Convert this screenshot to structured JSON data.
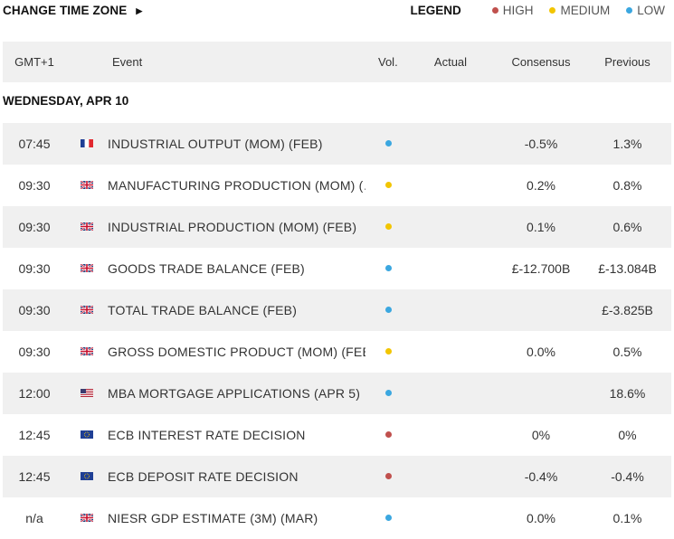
{
  "header": {
    "change_tz_label": "CHANGE TIME ZONE",
    "change_tz_arrow": "▶",
    "legend_title": "LEGEND",
    "legend": [
      {
        "label": "HIGH",
        "color": "#c0504d"
      },
      {
        "label": "MEDIUM",
        "color": "#f2c500"
      },
      {
        "label": "LOW",
        "color": "#3ba7e0"
      }
    ]
  },
  "columns": {
    "time": "GMT+1",
    "event": "Event",
    "vol": "Vol.",
    "actual": "Actual",
    "consensus": "Consensus",
    "previous": "Previous"
  },
  "day_label": "WEDNESDAY, APR 10",
  "colors": {
    "high": "#c0504d",
    "medium": "#f2c500",
    "low": "#3ba7e0"
  },
  "rows": [
    {
      "time": "07:45",
      "flag": "fr",
      "event": "INDUSTRIAL OUTPUT (MOM) (FEB)",
      "vol": "low",
      "actual": "",
      "consensus": "-0.5%",
      "previous": "1.3%"
    },
    {
      "time": "09:30",
      "flag": "uk",
      "event": "MANUFACTURING PRODUCTION (MOM) (…",
      "vol": "medium",
      "actual": "",
      "consensus": "0.2%",
      "previous": "0.8%"
    },
    {
      "time": "09:30",
      "flag": "uk",
      "event": "INDUSTRIAL PRODUCTION (MOM) (FEB)",
      "vol": "medium",
      "actual": "",
      "consensus": "0.1%",
      "previous": "0.6%"
    },
    {
      "time": "09:30",
      "flag": "uk",
      "event": "GOODS TRADE BALANCE (FEB)",
      "vol": "low",
      "actual": "",
      "consensus": "£-12.700B",
      "previous": "£-13.084B"
    },
    {
      "time": "09:30",
      "flag": "uk",
      "event": "TOTAL TRADE BALANCE (FEB)",
      "vol": "low",
      "actual": "",
      "consensus": "",
      "previous": "£-3.825B"
    },
    {
      "time": "09:30",
      "flag": "uk",
      "event": "GROSS DOMESTIC PRODUCT (MOM) (FEB)",
      "vol": "medium",
      "actual": "",
      "consensus": "0.0%",
      "previous": "0.5%"
    },
    {
      "time": "12:00",
      "flag": "us",
      "event": "MBA MORTGAGE APPLICATIONS (APR 5)",
      "vol": "low",
      "actual": "",
      "consensus": "",
      "previous": "18.6%"
    },
    {
      "time": "12:45",
      "flag": "eu",
      "event": "ECB INTEREST RATE DECISION",
      "vol": "high",
      "actual": "",
      "consensus": "0%",
      "previous": "0%"
    },
    {
      "time": "12:45",
      "flag": "eu",
      "event": "ECB DEPOSIT RATE DECISION",
      "vol": "high",
      "actual": "",
      "consensus": "-0.4%",
      "previous": "-0.4%"
    },
    {
      "time": "n/a",
      "flag": "uk",
      "event": "NIESR GDP ESTIMATE (3M) (MAR)",
      "vol": "low",
      "actual": "",
      "consensus": "0.0%",
      "previous": "0.1%"
    }
  ]
}
